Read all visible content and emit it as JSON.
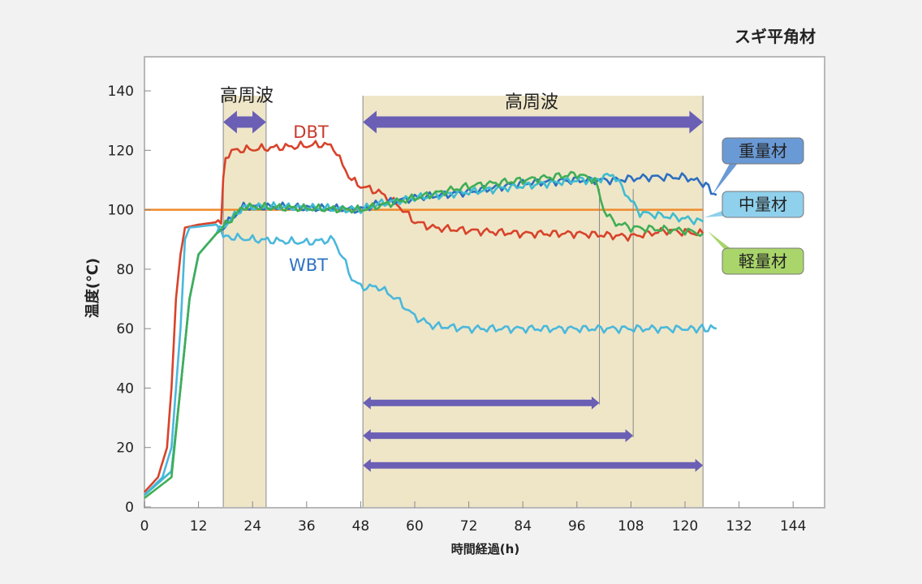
{
  "chart_data": {
    "type": "line",
    "title": "スギ平角材",
    "xlabel": "時間経過(h)",
    "ylabel": "温度(℃)",
    "xlim": [
      0,
      150
    ],
    "ylim": [
      0,
      150
    ],
    "xticks": [
      "0",
      "12",
      "24",
      "36",
      "48",
      "60",
      "72",
      "84",
      "96",
      "108",
      "120",
      "132",
      "144"
    ],
    "yticks": [
      "0",
      "20",
      "40",
      "60",
      "80",
      "100",
      "120",
      "140"
    ],
    "reference_line": {
      "value": 100,
      "color": "#f08a2c"
    },
    "shaded_periods": [
      {
        "label": "高周波",
        "start": 17.5,
        "end": 27
      },
      {
        "label": "高周波",
        "start": 48.5,
        "end": 124
      }
    ],
    "duration_arrows": [
      {
        "start": 48.5,
        "end": 101,
        "level": 35
      },
      {
        "start": 48.5,
        "end": 108.5,
        "level": 24
      },
      {
        "start": 48.5,
        "end": 124,
        "level": 14
      }
    ],
    "series": [
      {
        "name": "DBT",
        "color": "#d8432a",
        "x": [
          0,
          3,
          5,
          6,
          7,
          8,
          9,
          12,
          17,
          17.5,
          18,
          20,
          30,
          40,
          42,
          44,
          46,
          48,
          52,
          56,
          60,
          64,
          72,
          84,
          96,
          108,
          116,
          124
        ],
        "y": [
          5,
          10,
          20,
          40,
          70,
          85,
          94,
          95,
          96,
          110,
          118,
          120,
          121,
          122,
          121,
          115,
          110,
          108,
          106,
          102,
          96,
          94,
          93,
          92,
          92,
          91,
          93,
          92
        ]
      },
      {
        "name": "WBT",
        "color": "#4ab8dc",
        "x": [
          0,
          4,
          6,
          8,
          9,
          10,
          16,
          17,
          18,
          24,
          36,
          42,
          44,
          46,
          48,
          52,
          56,
          60,
          64,
          72,
          84,
          108,
          120,
          127
        ],
        "y": [
          4,
          10,
          20,
          60,
          90,
          94,
          95,
          93,
          91,
          90,
          89,
          90,
          84,
          77,
          74,
          74,
          70,
          64,
          61,
          60,
          60,
          60,
          60,
          60
        ]
      },
      {
        "name": "重量材",
        "color": "#2c6fc0",
        "x": [
          0,
          6,
          8,
          10,
          12,
          16,
          20,
          22,
          30,
          40,
          48,
          52,
          60,
          72,
          84,
          96,
          104,
          112,
          120,
          124,
          127
        ],
        "y": [
          4,
          12,
          40,
          70,
          85,
          92,
          98,
          101,
          101,
          100.5,
          100,
          102,
          104,
          106,
          109,
          110,
          110,
          111,
          111,
          109,
          105
        ]
      },
      {
        "name": "中量材",
        "color": "#3fbcd0",
        "x": [
          0,
          6,
          8,
          10,
          12,
          16,
          20,
          22,
          30,
          40,
          48,
          52,
          60,
          72,
          84,
          96,
          100,
          104,
          108,
          110,
          120,
          124
        ],
        "y": [
          4,
          12,
          40,
          70,
          85,
          92,
          98,
          101,
          101,
          100.5,
          100,
          102,
          104,
          106,
          108,
          110,
          110,
          112,
          103,
          99,
          97,
          96
        ]
      },
      {
        "name": "軽量材",
        "color": "#3fae55",
        "x": [
          0,
          6,
          8,
          10,
          12,
          16,
          20,
          22,
          48,
          60,
          72,
          84,
          96,
          100,
          102,
          104,
          108,
          120,
          124
        ],
        "y": [
          3,
          10,
          40,
          70,
          85,
          92,
          98,
          101,
          100,
          104,
          108,
          110,
          112,
          110,
          100,
          96,
          94,
          93,
          92
        ]
      }
    ],
    "annotations": {
      "period1": "高周波",
      "period2": "高周波",
      "dbt": "DBT",
      "wbt": "WBT",
      "heavy": "重量材",
      "medium": "中量材",
      "light": "軽量材"
    }
  },
  "colors": {
    "heavy_box": "#6a9ad6",
    "medium_box": "#8fd0ec",
    "light_box": "#a9d56a",
    "arrow": "#6a5fb4",
    "shade": "#efe6c8"
  }
}
